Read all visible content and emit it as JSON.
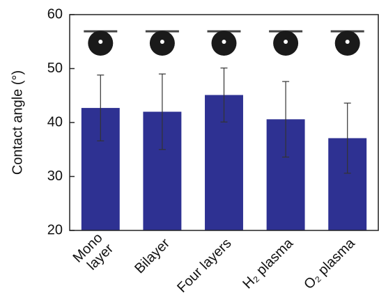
{
  "chart_data": {
    "type": "bar",
    "y_label": "Contact angle (°)",
    "categories": [
      "Mono\nlayer",
      "Bilayer",
      "Four layers",
      "H₂ plasma",
      "O₂ plasma"
    ],
    "values": [
      42.7,
      42.0,
      45.1,
      40.6,
      37.1
    ],
    "errors": [
      6.1,
      7.0,
      5.0,
      7.0,
      6.5
    ],
    "color": "#2e3192",
    "ylim": [
      20,
      60
    ],
    "yticks": [
      20,
      30,
      40,
      50,
      60
    ],
    "grid": false
  }
}
